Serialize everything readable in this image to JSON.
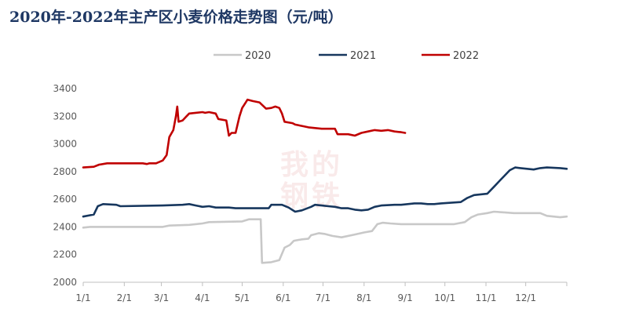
{
  "chart_data": {
    "type": "line",
    "title": "2020年-2022年主产区小麦价格走势图（元/吨）",
    "xlabel": "",
    "ylabel": "",
    "ylim": [
      2000,
      3400
    ],
    "yticks": [
      2000,
      2200,
      2400,
      2600,
      2800,
      3000,
      3200,
      3400
    ],
    "xlim": [
      0,
      365
    ],
    "xticks": [
      {
        "label": "1/1",
        "day": 0
      },
      {
        "label": "2/1",
        "day": 31
      },
      {
        "label": "3/1",
        "day": 59
      },
      {
        "label": "4/1",
        "day": 90
      },
      {
        "label": "5/1",
        "day": 120
      },
      {
        "label": "6/1",
        "day": 151
      },
      {
        "label": "7/1",
        "day": 181
      },
      {
        "label": "8/1",
        "day": 212
      },
      {
        "label": "9/1",
        "day": 243
      },
      {
        "label": "10/1",
        "day": 273
      },
      {
        "label": "11/1",
        "day": 304
      },
      {
        "label": "12/1",
        "day": 334
      }
    ],
    "grid": false,
    "legend_position": "top",
    "watermark": "我的钢铁",
    "series": [
      {
        "name": "2020",
        "color": "#c8c8c8",
        "points": [
          [
            0,
            2395
          ],
          [
            5,
            2400
          ],
          [
            60,
            2400
          ],
          [
            65,
            2410
          ],
          [
            80,
            2415
          ],
          [
            90,
            2425
          ],
          [
            95,
            2435
          ],
          [
            120,
            2440
          ],
          [
            125,
            2455
          ],
          [
            134,
            2455
          ],
          [
            135,
            2140
          ],
          [
            142,
            2145
          ],
          [
            148,
            2160
          ],
          [
            152,
            2250
          ],
          [
            156,
            2270
          ],
          [
            159,
            2300
          ],
          [
            165,
            2310
          ],
          [
            170,
            2315
          ],
          [
            172,
            2340
          ],
          [
            178,
            2355
          ],
          [
            182,
            2350
          ],
          [
            188,
            2335
          ],
          [
            195,
            2325
          ],
          [
            205,
            2345
          ],
          [
            212,
            2360
          ],
          [
            218,
            2370
          ],
          [
            222,
            2420
          ],
          [
            226,
            2430
          ],
          [
            232,
            2425
          ],
          [
            240,
            2420
          ],
          [
            260,
            2420
          ],
          [
            280,
            2420
          ],
          [
            288,
            2435
          ],
          [
            293,
            2470
          ],
          [
            298,
            2490
          ],
          [
            305,
            2500
          ],
          [
            310,
            2510
          ],
          [
            318,
            2505
          ],
          [
            325,
            2500
          ],
          [
            345,
            2500
          ],
          [
            350,
            2480
          ],
          [
            360,
            2470
          ],
          [
            365,
            2475
          ]
        ]
      },
      {
        "name": "2021",
        "color": "#17375e",
        "points": [
          [
            0,
            2475
          ],
          [
            8,
            2490
          ],
          [
            11,
            2550
          ],
          [
            15,
            2565
          ],
          [
            25,
            2560
          ],
          [
            28,
            2550
          ],
          [
            60,
            2555
          ],
          [
            75,
            2560
          ],
          [
            80,
            2565
          ],
          [
            85,
            2555
          ],
          [
            90,
            2545
          ],
          [
            95,
            2550
          ],
          [
            100,
            2540
          ],
          [
            110,
            2540
          ],
          [
            115,
            2535
          ],
          [
            140,
            2535
          ],
          [
            142,
            2560
          ],
          [
            150,
            2560
          ],
          [
            155,
            2540
          ],
          [
            160,
            2510
          ],
          [
            165,
            2520
          ],
          [
            172,
            2545
          ],
          [
            175,
            2560
          ],
          [
            180,
            2555
          ],
          [
            185,
            2550
          ],
          [
            190,
            2545
          ],
          [
            195,
            2535
          ],
          [
            200,
            2535
          ],
          [
            205,
            2525
          ],
          [
            210,
            2520
          ],
          [
            215,
            2525
          ],
          [
            220,
            2545
          ],
          [
            225,
            2555
          ],
          [
            235,
            2560
          ],
          [
            240,
            2560
          ],
          [
            250,
            2570
          ],
          [
            255,
            2570
          ],
          [
            260,
            2565
          ],
          [
            265,
            2565
          ],
          [
            270,
            2570
          ],
          [
            285,
            2580
          ],
          [
            290,
            2610
          ],
          [
            295,
            2630
          ],
          [
            305,
            2640
          ],
          [
            310,
            2690
          ],
          [
            315,
            2740
          ],
          [
            318,
            2770
          ],
          [
            322,
            2810
          ],
          [
            326,
            2830
          ],
          [
            330,
            2825
          ],
          [
            335,
            2820
          ],
          [
            340,
            2815
          ],
          [
            345,
            2825
          ],
          [
            350,
            2830
          ],
          [
            360,
            2825
          ],
          [
            365,
            2820
          ]
        ]
      },
      {
        "name": "2022",
        "color": "#c00000",
        "points": [
          [
            0,
            2830
          ],
          [
            8,
            2835
          ],
          [
            12,
            2850
          ],
          [
            18,
            2860
          ],
          [
            45,
            2860
          ],
          [
            48,
            2855
          ],
          [
            50,
            2860
          ],
          [
            55,
            2860
          ],
          [
            60,
            2880
          ],
          [
            63,
            2920
          ],
          [
            65,
            3050
          ],
          [
            68,
            3100
          ],
          [
            70,
            3200
          ],
          [
            71,
            3270
          ],
          [
            72,
            3160
          ],
          [
            75,
            3170
          ],
          [
            78,
            3200
          ],
          [
            80,
            3220
          ],
          [
            90,
            3230
          ],
          [
            92,
            3225
          ],
          [
            95,
            3230
          ],
          [
            100,
            3220
          ],
          [
            102,
            3180
          ],
          [
            108,
            3170
          ],
          [
            110,
            3060
          ],
          [
            112,
            3080
          ],
          [
            115,
            3080
          ],
          [
            118,
            3200
          ],
          [
            120,
            3260
          ],
          [
            122,
            3290
          ],
          [
            124,
            3320
          ],
          [
            128,
            3310
          ],
          [
            133,
            3300
          ],
          [
            138,
            3255
          ],
          [
            142,
            3260
          ],
          [
            145,
            3270
          ],
          [
            148,
            3260
          ],
          [
            150,
            3220
          ],
          [
            152,
            3160
          ],
          [
            158,
            3150
          ],
          [
            160,
            3140
          ],
          [
            165,
            3130
          ],
          [
            170,
            3120
          ],
          [
            175,
            3115
          ],
          [
            180,
            3110
          ],
          [
            190,
            3110
          ],
          [
            192,
            3070
          ],
          [
            200,
            3070
          ],
          [
            205,
            3060
          ],
          [
            210,
            3080
          ],
          [
            215,
            3090
          ],
          [
            220,
            3100
          ],
          [
            225,
            3095
          ],
          [
            230,
            3100
          ],
          [
            235,
            3090
          ],
          [
            240,
            3085
          ],
          [
            243,
            3080
          ]
        ]
      }
    ]
  }
}
